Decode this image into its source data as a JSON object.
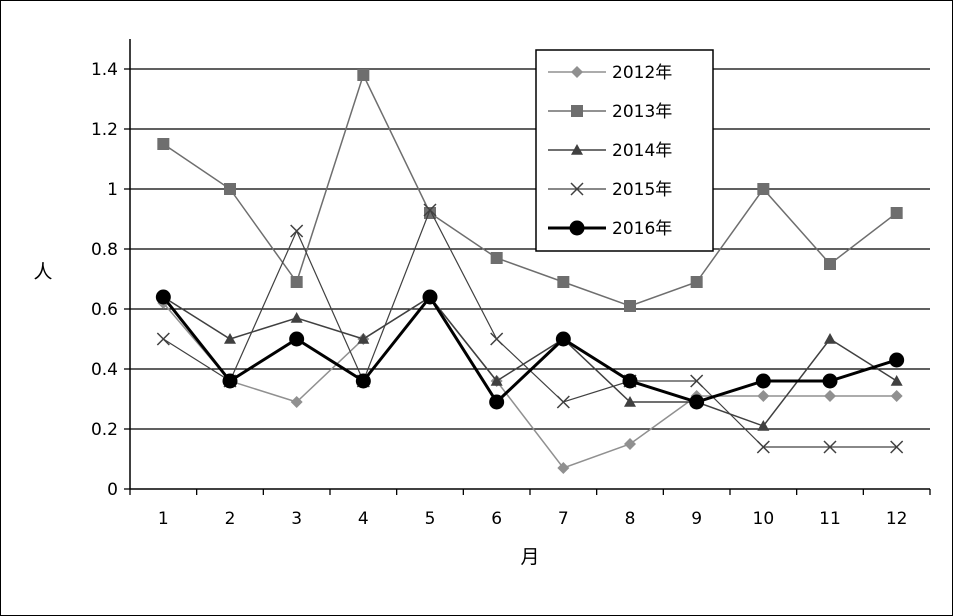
{
  "chart_data": {
    "type": "line",
    "title": "",
    "xlabel": "月",
    "ylabel": "人",
    "categories": [
      "1",
      "2",
      "3",
      "4",
      "5",
      "6",
      "7",
      "8",
      "9",
      "10",
      "11",
      "12"
    ],
    "ylim": [
      0,
      1.5
    ],
    "y_ticks": [
      "0",
      "0.2",
      "0.4",
      "0.6",
      "0.8",
      "1",
      "1.2",
      "1.4"
    ],
    "y_tick_values": [
      0,
      0.2,
      0.4,
      0.6,
      0.8,
      1.0,
      1.2,
      1.4
    ],
    "grid": "horizontal",
    "legend_position": "top-right",
    "series": [
      {
        "name": "2012年",
        "marker": "diamond",
        "color": "#909090",
        "stroke_width": 1.5,
        "values": [
          0.62,
          0.36,
          0.29,
          0.5,
          0.64,
          0.36,
          0.07,
          0.15,
          0.31,
          0.31,
          0.31,
          0.31
        ]
      },
      {
        "name": "2013年",
        "marker": "square",
        "color": "#6e6e6e",
        "stroke_width": 1.5,
        "values": [
          1.15,
          1.0,
          0.69,
          1.38,
          0.92,
          0.77,
          0.69,
          0.61,
          0.69,
          1.0,
          0.75,
          0.92
        ]
      },
      {
        "name": "2014年",
        "marker": "triangle",
        "color": "#404040",
        "stroke_width": 1.5,
        "values": [
          0.64,
          0.5,
          0.57,
          0.5,
          0.64,
          0.36,
          0.5,
          0.29,
          0.29,
          0.21,
          0.5,
          0.36
        ]
      },
      {
        "name": "2015年",
        "marker": "x",
        "color": "#404040",
        "stroke_width": 1.2,
        "values": [
          0.5,
          0.36,
          0.86,
          0.36,
          0.93,
          0.5,
          0.29,
          0.36,
          0.36,
          0.14,
          0.14,
          0.14
        ]
      },
      {
        "name": "2016年",
        "marker": "circle",
        "color": "#000000",
        "stroke_width": 3,
        "values": [
          0.64,
          0.36,
          0.5,
          0.36,
          0.64,
          0.29,
          0.5,
          0.36,
          0.29,
          0.36,
          0.36,
          0.43
        ]
      }
    ]
  }
}
